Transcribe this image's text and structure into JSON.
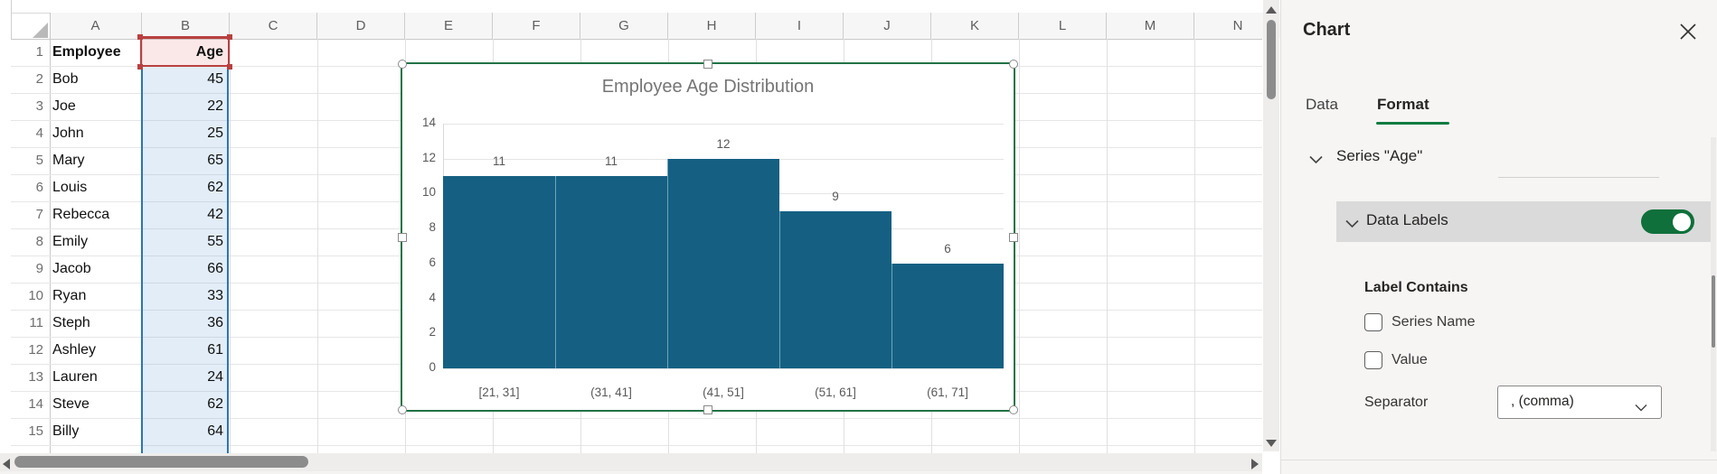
{
  "spreadsheet": {
    "columns": [
      "A",
      "B",
      "C",
      "D",
      "E",
      "F",
      "G",
      "H",
      "I",
      "J",
      "K",
      "L",
      "M",
      "N"
    ],
    "ref_column": "B",
    "rows": [
      {
        "n": "1",
        "employee": "Employee",
        "age": "Age",
        "header": true
      },
      {
        "n": "2",
        "employee": "Bob",
        "age": "45"
      },
      {
        "n": "3",
        "employee": "Joe",
        "age": "22"
      },
      {
        "n": "4",
        "employee": "John",
        "age": "25"
      },
      {
        "n": "5",
        "employee": "Mary",
        "age": "65"
      },
      {
        "n": "6",
        "employee": "Louis",
        "age": "62"
      },
      {
        "n": "7",
        "employee": "Rebecca",
        "age": "42"
      },
      {
        "n": "8",
        "employee": "Emily",
        "age": "55"
      },
      {
        "n": "9",
        "employee": "Jacob",
        "age": "66"
      },
      {
        "n": "10",
        "employee": "Ryan",
        "age": "33"
      },
      {
        "n": "11",
        "employee": "Steph",
        "age": "36"
      },
      {
        "n": "12",
        "employee": "Ashley",
        "age": "61"
      },
      {
        "n": "13",
        "employee": "Lauren",
        "age": "24"
      },
      {
        "n": "14",
        "employee": "Steve",
        "age": "62"
      },
      {
        "n": "15",
        "employee": "Billy",
        "age": "64"
      },
      {
        "n": "16",
        "employee": "",
        "age": "",
        "clipped": true
      }
    ]
  },
  "chart_data": {
    "type": "bar",
    "subtype": "histogram",
    "title": "Employee Age Distribution",
    "series_name": "Age",
    "categories": [
      "[21, 31]",
      "(31, 41]",
      "(41, 51]",
      "(51, 61]",
      "(61, 71]"
    ],
    "values": [
      11,
      11,
      12,
      9,
      6
    ],
    "xlabel": "",
    "ylabel": "",
    "ylim": [
      0,
      14
    ],
    "ytick_step": 2,
    "grid": true,
    "legend": false,
    "data_labels_shown": true,
    "bar_color": "#156082"
  },
  "panel": {
    "title": "Chart",
    "close_icon": "close-x",
    "tabs": [
      {
        "label": "Data",
        "active": false
      },
      {
        "label": "Format",
        "active": true
      }
    ],
    "series_section_label": "Series \"Age\"",
    "data_labels": {
      "label": "Data Labels",
      "enabled": true
    },
    "label_contains": {
      "heading": "Label Contains",
      "options": [
        {
          "label": "Series Name",
          "checked": false
        },
        {
          "label": "Value",
          "checked": false
        }
      ]
    },
    "separator": {
      "label": "Separator",
      "value": ", (comma)"
    }
  },
  "colors": {
    "accent_green": "#107C41",
    "chart_border_green": "#217346",
    "bar_teal": "#156082",
    "ref_red": "#B94040",
    "range_blue": "#2B74B8",
    "toggle_on_green": "#0F703B"
  }
}
